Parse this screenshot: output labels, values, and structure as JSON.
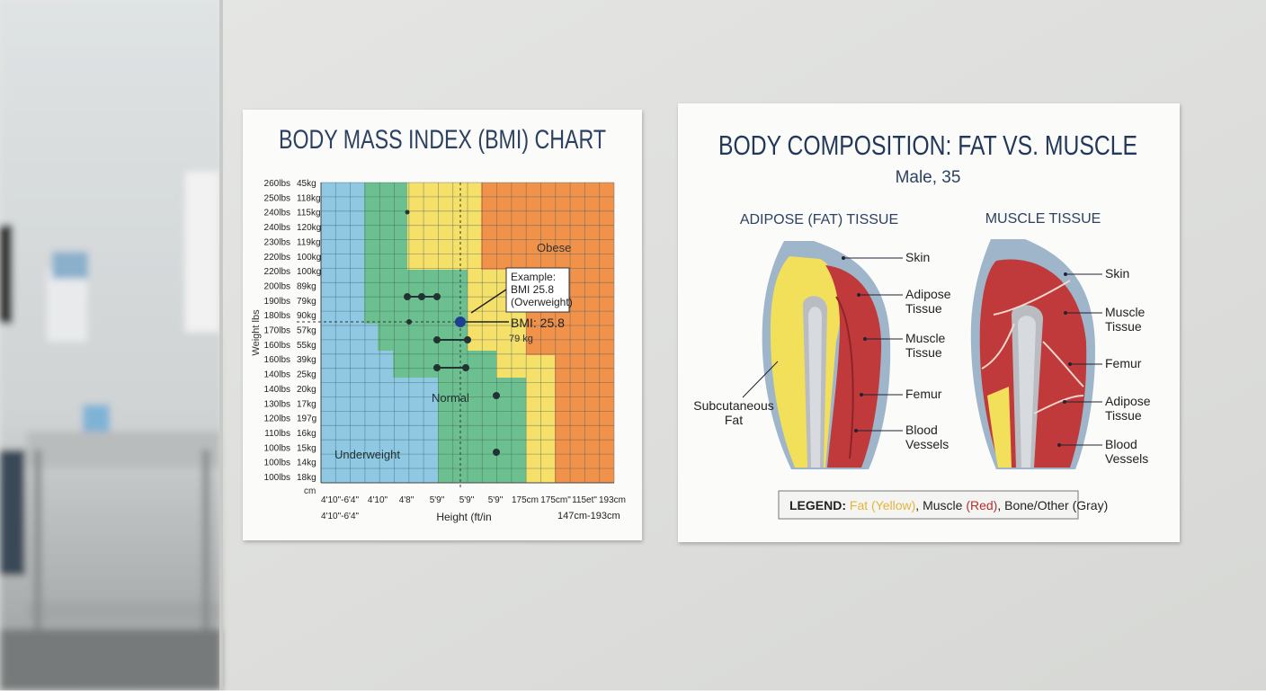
{
  "bmi_poster": {
    "title": "BODY MASS INDEX (BMI) CHART",
    "y_axis_label": "Weight lbs",
    "x_unit": "cm",
    "rows": [
      {
        "lbs": "260lbs",
        "kg": "45kg"
      },
      {
        "lbs": "250lbs",
        "kg": "118kg"
      },
      {
        "lbs": "240lbs",
        "kg": "115kg"
      },
      {
        "lbs": "240lbs",
        "kg": "120kg"
      },
      {
        "lbs": "230lbs",
        "kg": "119kg"
      },
      {
        "lbs": "220lbs",
        "kg": "100kg"
      },
      {
        "lbs": "220lbs",
        "kg": "100kg"
      },
      {
        "lbs": "200lbs",
        "kg": "89kg"
      },
      {
        "lbs": "190lbs",
        "kg": "79kg"
      },
      {
        "lbs": "180lbs",
        "kg": "90kg"
      },
      {
        "lbs": "170lbs",
        "kg": "57kg"
      },
      {
        "lbs": "160lbs",
        "kg": "55kg"
      },
      {
        "lbs": "160lbs",
        "kg": "39kg"
      },
      {
        "lbs": "140lbs",
        "kg": "25kg"
      },
      {
        "lbs": "140lbs",
        "kg": "20kg"
      },
      {
        "lbs": "130lbs",
        "kg": "17kg"
      },
      {
        "lbs": "120lbs",
        "kg": "197g"
      },
      {
        "lbs": "110lbs",
        "kg": "16kg"
      },
      {
        "lbs": "100lbs",
        "kg": "15kg"
      },
      {
        "lbs": "100lbs",
        "kg": "14kg"
      },
      {
        "lbs": "100lbs",
        "kg": "18kg"
      }
    ],
    "x_labels": [
      "4'10\"-6'4\"",
      "4'10\"",
      "4'8\"",
      "5'9\"",
      "5'9\"",
      "5'9\"",
      "175cm",
      "175cm\"",
      "115et\"",
      "193cm"
    ],
    "x_range_ft": "4'10\"-6'4\"",
    "x_axis_label": "Height (ft/in",
    "x_range_cm": "147cm-193cm",
    "zones": {
      "underweight": "Underweight",
      "normal": "Normal",
      "obese": "Obese"
    },
    "callout": [
      "Example:",
      "BMI 25.8",
      "(Overweight)"
    ],
    "marker_label": "BMI: 25.8",
    "marker_weight": "79 kg"
  },
  "composition_poster": {
    "title": "BODY COMPOSITION: FAT VS. MUSCLE",
    "subtitle": "Male, 35",
    "left_heading": "ADIPOSE (FAT) TISSUE",
    "right_heading": "MUSCLE TISSUE",
    "left_labels": [
      [
        "Skin"
      ],
      [
        "Adipose",
        "Tissue"
      ],
      [
        "Muscle",
        "Tissue"
      ],
      [
        "Femur"
      ],
      [
        "Blood",
        "Vessels"
      ]
    ],
    "left_side_label": [
      "Subcutaneous",
      "Fat"
    ],
    "right_labels": [
      [
        "Skin"
      ],
      [
        "Muscle",
        "Tissue"
      ],
      [
        "Femur"
      ],
      [
        "Adipose",
        "Tissue"
      ],
      [
        "Blood",
        "Vessels"
      ]
    ],
    "legend": {
      "prefix": "LEGEND:",
      "fat": "Fat",
      "fat_color": "(Yellow)",
      "muscle": ", Muscle",
      "muscle_color": "(Red)",
      "rest": ", Bone/Other (Gray)"
    }
  }
}
